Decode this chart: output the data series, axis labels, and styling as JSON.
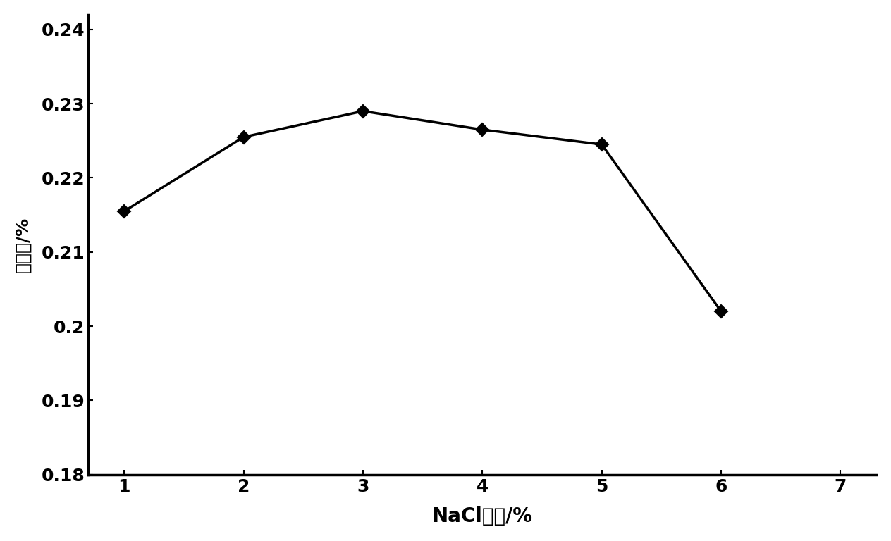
{
  "x": [
    1,
    2,
    3,
    4,
    5,
    6
  ],
  "y": [
    0.2155,
    0.2255,
    0.229,
    0.2265,
    0.2245,
    0.202
  ],
  "xlabel": "NaCl浓度/%",
  "ylabel": "提取率/%",
  "xlim": [
    0.7,
    7.3
  ],
  "ylim": [
    0.18,
    0.242
  ],
  "xticks": [
    1,
    2,
    3,
    4,
    5,
    6,
    7
  ],
  "ytick_values": [
    0.18,
    0.19,
    0.2,
    0.21,
    0.22,
    0.23,
    0.24
  ],
  "ytick_labels": [
    "0.18",
    "0.19",
    "0.2",
    "0.21",
    "0.22",
    "0.23",
    "0.24"
  ],
  "line_color": "#000000",
  "marker": "D",
  "marker_size": 9,
  "marker_facecolor": "#000000",
  "linewidth": 2.5,
  "background_color": "#ffffff",
  "xlabel_fontsize": 20,
  "ylabel_fontsize": 18,
  "tick_fontsize": 18,
  "spine_linewidth": 2.5
}
